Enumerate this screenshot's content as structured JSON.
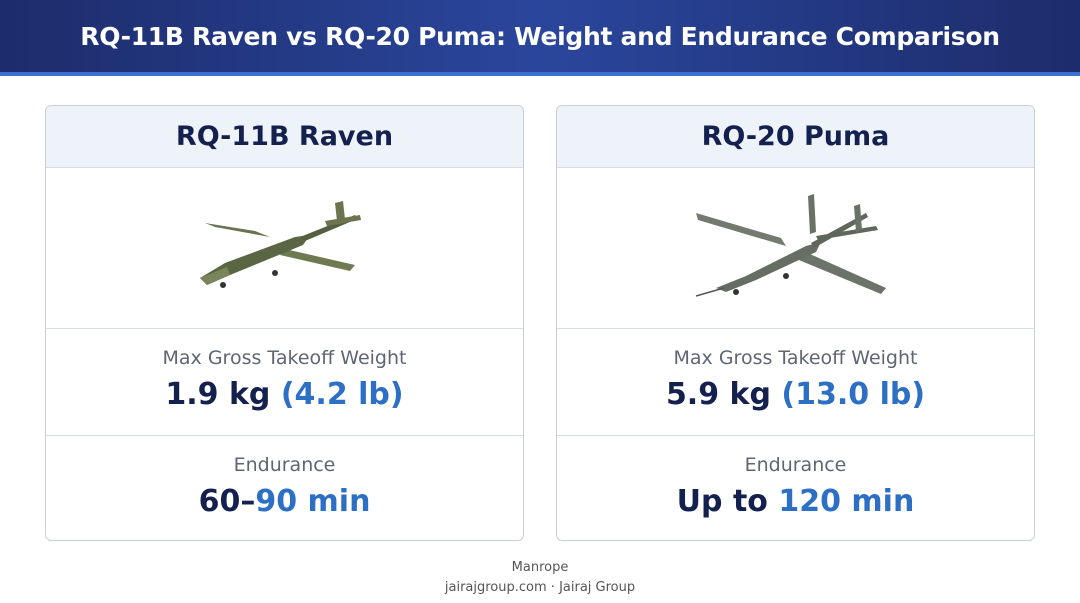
{
  "header": {
    "title": "RQ-11B Raven vs RQ-20 Puma: Weight and Endurance Comparison"
  },
  "cards": [
    {
      "name": "RQ-11B Raven",
      "weight": {
        "label": "Max Gross Takeoff Weight",
        "primary": "1.9 kg",
        "secondary": "(4.2 lb)"
      },
      "endurance": {
        "label": "Endurance",
        "primary": "60–",
        "secondary": "90 min"
      }
    },
    {
      "name": "RQ-20 Puma",
      "weight": {
        "label": "Max Gross Takeoff Weight",
        "primary": "5.9 kg",
        "secondary": "(13.0 lb)"
      },
      "endurance": {
        "label": "Endurance",
        "primary": "Up to",
        "secondary": "120 min"
      }
    }
  ],
  "footer": {
    "font": "Manrope",
    "site": "jairajgroup.com",
    "separator": "·",
    "company": "Jairaj Group"
  }
}
